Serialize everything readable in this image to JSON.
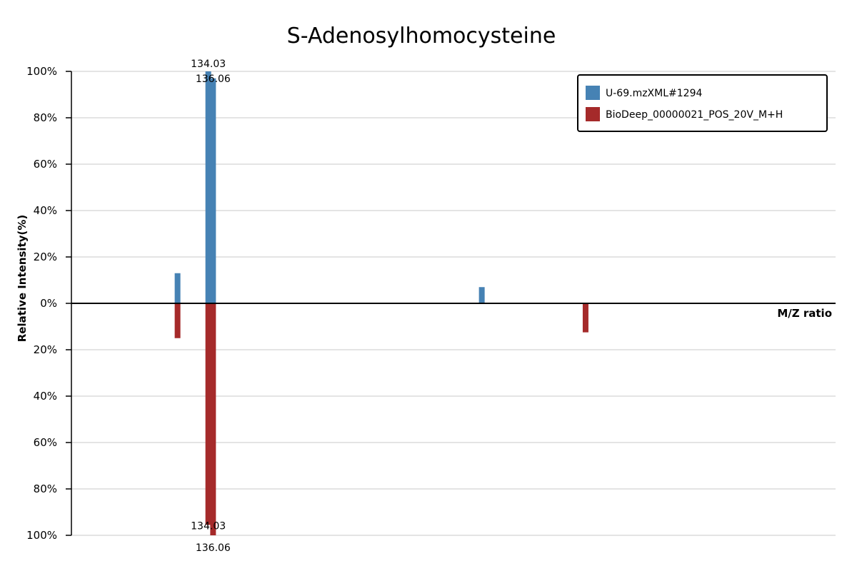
{
  "chart_data": {
    "type": "bar",
    "title": "S-Adenosylhomocysteine",
    "xlabel": "M/Z ratio",
    "ylabel": "Relative Intensity(%)",
    "y_ticks_upper": [
      "100%",
      "80%",
      "60%",
      "40%",
      "20%",
      "0%"
    ],
    "y_ticks_lower": [
      "20%",
      "40%",
      "60%",
      "80%",
      "100%"
    ],
    "ylim": [
      -100,
      100
    ],
    "xlim": [
      76,
      400
    ],
    "grid": true,
    "legend_position": "top-right",
    "series": [
      {
        "name": "U-69.mzXML#1294",
        "color": "#4682b4",
        "direction": "up",
        "peaks": [
          {
            "mz": 121,
            "intensity": 13
          },
          {
            "mz": 134.03,
            "intensity": 100,
            "label": "134.03"
          },
          {
            "mz": 136.06,
            "intensity": 97,
            "label": "136.06"
          },
          {
            "mz": 250,
            "intensity": 7
          }
        ]
      },
      {
        "name": "BioDeep_00000021_POS_20V_M+H",
        "color": "#a52a2a",
        "direction": "down",
        "peaks": [
          {
            "mz": 121,
            "intensity": 15
          },
          {
            "mz": 134.03,
            "intensity": 95.5,
            "label": "134.03"
          },
          {
            "mz": 136.06,
            "intensity": 100,
            "label": "136.06"
          },
          {
            "mz": 294,
            "intensity": 12.5
          }
        ]
      }
    ]
  }
}
